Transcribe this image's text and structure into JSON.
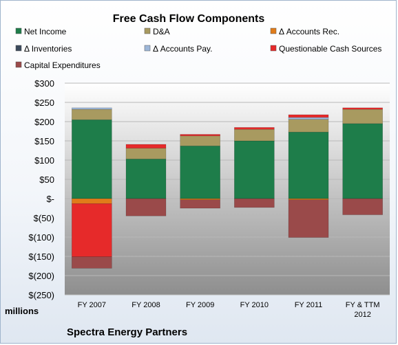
{
  "chart_data": {
    "type": "bar",
    "stacked": true,
    "title": "Free Cash Flow Components",
    "ylabel": "millions",
    "footer": "Spectra Energy Partners",
    "ylim": [
      -250,
      300
    ],
    "yticks": [
      300,
      250,
      200,
      150,
      100,
      50,
      0,
      -50,
      -100,
      -150,
      -200,
      -250
    ],
    "ytick_labels": [
      "$300",
      "$250",
      "$200",
      "$150",
      "$100",
      "$50",
      "$-",
      "$(50)",
      "$(100)",
      "$(150)",
      "$(200)",
      "$(250)"
    ],
    "grid": true,
    "legend_position": "top",
    "categories": [
      "FY 2007",
      "FY 2008",
      "FY 2009",
      "FY 2010",
      "FY 2011",
      "FY & TTM 2012"
    ],
    "series": [
      {
        "name": "Net Income",
        "color": "#1e7d4a",
        "values": [
          205,
          103,
          137,
          150,
          173,
          195
        ]
      },
      {
        "name": "D&A",
        "color": "#a89a60",
        "values": [
          27,
          28,
          26,
          30,
          33,
          37
        ]
      },
      {
        "name": "Δ Accounts Rec.",
        "color": "#e07c1a",
        "values": [
          -13,
          0,
          -3,
          0,
          -3,
          0
        ]
      },
      {
        "name": "Δ Inventories",
        "color": "#3b4a5c",
        "values": [
          0,
          0,
          0,
          0,
          0,
          0
        ]
      },
      {
        "name": "Δ Accounts Pay.",
        "color": "#9cb6d8",
        "values": [
          4,
          0,
          0,
          0,
          5,
          0
        ]
      },
      {
        "name": "Questionable Cash Sources",
        "color": "#e62a2a",
        "values": [
          -138,
          10,
          4,
          5,
          7,
          4
        ]
      },
      {
        "name": "Capital Expenditures",
        "color": "#9a4a4a",
        "values": [
          -30,
          -45,
          -22,
          -23,
          -98,
          -42
        ]
      }
    ]
  }
}
